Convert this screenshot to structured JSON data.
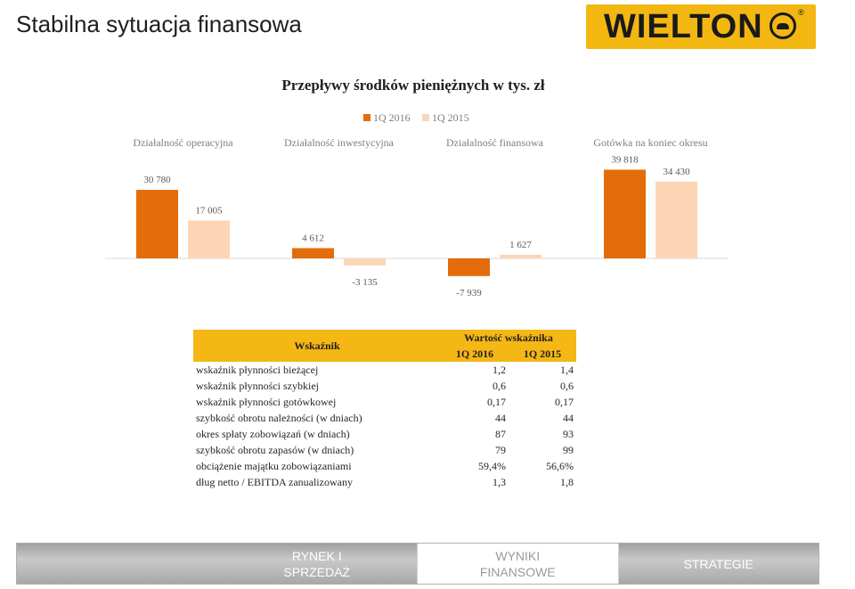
{
  "slide": {
    "title": "Stabilna sytuacja finansowa",
    "logo_text": "WIELTON",
    "logo_reg": "®"
  },
  "colors": {
    "series_2016": "#e46c0a",
    "series_2015": "#fcd5b5",
    "table_header": "#f5b714",
    "axis": "#d9d9d9"
  },
  "chart_data": {
    "type": "bar",
    "title": "Przepływy środków pieniężnych w tys. zł",
    "categories": [
      "Działalność operacyjna",
      "Działalność inwestycyjna",
      "Działalność finansowa",
      "Gotówka na koniec okresu"
    ],
    "series": [
      {
        "name": "1Q 2016",
        "values": [
          30780,
          4612,
          -7939,
          39818
        ],
        "labels": [
          "30 780",
          "4 612",
          "-7 939",
          "39 818"
        ]
      },
      {
        "name": "1Q 2015",
        "values": [
          17005,
          -3135,
          1627,
          34430
        ],
        "labels": [
          "17 005",
          "-3 135",
          "1 627",
          "34 430"
        ]
      }
    ],
    "legend_position": "top",
    "grid": false
  },
  "table": {
    "header_indicator": "Wskaźnik",
    "header_value": "Wartość wskaźnika",
    "col_2016": "1Q 2016",
    "col_2015": "1Q 2015",
    "rows": [
      {
        "label": "wskaźnik płynności bieżącej",
        "v2016": "1,2",
        "v2015": "1,4"
      },
      {
        "label": "wskaźnik płynności szybkiej",
        "v2016": "0,6",
        "v2015": "0,6"
      },
      {
        "label": "wskaźnik płynności gotówkowej",
        "v2016": "0,17",
        "v2015": "0,17"
      },
      {
        "label": "szybkość obrotu należności (w dniach)",
        "v2016": "44",
        "v2015": "44"
      },
      {
        "label": "okres spłaty zobowiązań (w dniach)",
        "v2016": "87",
        "v2015": "93"
      },
      {
        "label": "szybkość obrotu zapasów (w dniach)",
        "v2016": "79",
        "v2015": "99"
      },
      {
        "label": "obciążenie majątku zobowiązaniami",
        "v2016": "59,4%",
        "v2015": "56,6%"
      },
      {
        "label": "dług netto / EBITDA zanualizowany",
        "v2016": "1,3",
        "v2015": "1,8"
      }
    ]
  },
  "nav": {
    "tabs": [
      {
        "label": "",
        "active": false
      },
      {
        "label": "RYNEK I\nSPRZEDAŻ",
        "active": false
      },
      {
        "label": "WYNIKI\nFINANSOWE",
        "active": true
      },
      {
        "label": "STRATEGIE",
        "active": false
      }
    ]
  }
}
